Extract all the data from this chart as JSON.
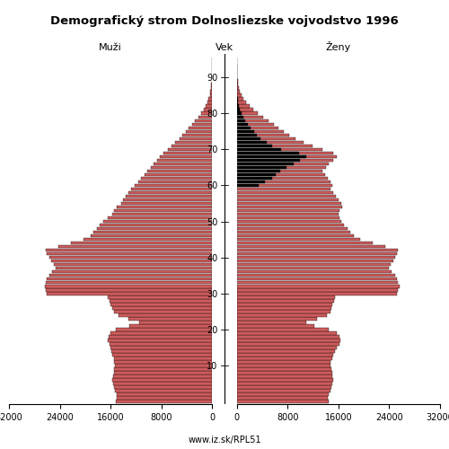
{
  "title": "Demografický strom Dolnosliezske vojvodstvo 1996",
  "left_label": "Muži",
  "center_label": "Vek",
  "right_label": "Ženy",
  "watermark": "www.iz.sk/RPL51",
  "xlim": 32000,
  "bar_color": "#cd5c5c",
  "bar_edge_color": "#000000",
  "black_color": "#000000",
  "background_color": "#ffffff",
  "ages": [
    0,
    1,
    2,
    3,
    4,
    5,
    6,
    7,
    8,
    9,
    10,
    11,
    12,
    13,
    14,
    15,
    16,
    17,
    18,
    19,
    20,
    21,
    22,
    23,
    24,
    25,
    26,
    27,
    28,
    29,
    30,
    31,
    32,
    33,
    34,
    35,
    36,
    37,
    38,
    39,
    40,
    41,
    42,
    43,
    44,
    45,
    46,
    47,
    48,
    49,
    50,
    51,
    52,
    53,
    54,
    55,
    56,
    57,
    58,
    59,
    60,
    61,
    62,
    63,
    64,
    65,
    66,
    67,
    68,
    69,
    70,
    71,
    72,
    73,
    74,
    75,
    76,
    77,
    78,
    79,
    80,
    81,
    82,
    83,
    84,
    85,
    86,
    87,
    88,
    89,
    90,
    91,
    92,
    93,
    94,
    95
  ],
  "males": [
    15200,
    15000,
    15100,
    15300,
    15500,
    15600,
    15700,
    15600,
    15500,
    15400,
    15300,
    15400,
    15500,
    15700,
    15900,
    16000,
    16200,
    16400,
    16300,
    16100,
    15200,
    13000,
    11500,
    13200,
    14800,
    15500,
    15800,
    16000,
    16200,
    16400,
    26000,
    26200,
    26400,
    26200,
    26000,
    25700,
    25200,
    24700,
    25000,
    25400,
    25700,
    26000,
    26200,
    24200,
    22200,
    20200,
    19200,
    18700,
    18200,
    17700,
    17200,
    16400,
    15800,
    15400,
    15000,
    14400,
    14000,
    13600,
    13200,
    12800,
    12200,
    11700,
    11200,
    10700,
    10200,
    9700,
    9200,
    8700,
    8200,
    7700,
    7000,
    6400,
    5800,
    5200,
    4700,
    4200,
    3700,
    3200,
    2700,
    2200,
    1800,
    1400,
    1050,
    780,
    560,
    410,
    290,
    200,
    135,
    88,
    57,
    37,
    23,
    15,
    10,
    6
  ],
  "females": [
    14500,
    14300,
    14500,
    14700,
    14900,
    15000,
    15200,
    15100,
    15000,
    14900,
    14700,
    14800,
    15000,
    15200,
    15400,
    15800,
    16100,
    16300,
    16100,
    15800,
    14500,
    12200,
    11000,
    12700,
    14200,
    14700,
    14900,
    15100,
    15300,
    15500,
    25200,
    25400,
    25600,
    25400,
    25200,
    24900,
    24400,
    23900,
    24200,
    24600,
    24900,
    25200,
    25400,
    23400,
    21400,
    19400,
    18400,
    17900,
    17400,
    16900,
    16400,
    16200,
    16000,
    16200,
    16600,
    16400,
    16000,
    15600,
    15200,
    14800,
    15000,
    14800,
    14400,
    13900,
    13500,
    14000,
    14500,
    15200,
    15800,
    15200,
    13500,
    12000,
    10500,
    9200,
    8200,
    7400,
    6600,
    5800,
    5000,
    4200,
    3300,
    2600,
    2000,
    1450,
    1050,
    750,
    510,
    340,
    215,
    138,
    86,
    53,
    33,
    21,
    13,
    8
  ],
  "females_black": [
    0,
    0,
    0,
    0,
    0,
    0,
    0,
    0,
    0,
    0,
    0,
    0,
    0,
    0,
    0,
    0,
    0,
    0,
    0,
    0,
    0,
    0,
    0,
    0,
    0,
    0,
    0,
    0,
    0,
    0,
    0,
    0,
    0,
    0,
    0,
    0,
    0,
    0,
    0,
    0,
    0,
    0,
    0,
    0,
    0,
    0,
    0,
    0,
    0,
    0,
    0,
    0,
    0,
    0,
    0,
    0,
    0,
    0,
    0,
    0,
    3500,
    4500,
    5500,
    6200,
    6800,
    7800,
    9000,
    10000,
    11000,
    9800,
    7000,
    5500,
    4700,
    3800,
    3200,
    2700,
    2200,
    1800,
    1400,
    1050,
    750,
    520,
    360,
    240,
    155,
    95,
    60,
    35,
    20,
    12,
    7,
    4,
    2,
    1,
    0,
    0
  ],
  "males_black": [
    0,
    0,
    0,
    0,
    0,
    0,
    0,
    0,
    0,
    0,
    0,
    0,
    0,
    0,
    0,
    0,
    0,
    0,
    0,
    0,
    0,
    0,
    0,
    0,
    0,
    0,
    0,
    0,
    0,
    0,
    0,
    0,
    0,
    0,
    0,
    0,
    0,
    0,
    0,
    0,
    0,
    0,
    0,
    0,
    0,
    0,
    0,
    0,
    0,
    0,
    0,
    0,
    0,
    0,
    0,
    0,
    0,
    0,
    0,
    0,
    0,
    0,
    0,
    0,
    0,
    0,
    0,
    0,
    0,
    0,
    0,
    0,
    0,
    0,
    0,
    0,
    0,
    0,
    0,
    0,
    0,
    0,
    0,
    0,
    0,
    0,
    0,
    0,
    0,
    0,
    0,
    0,
    0,
    0,
    0,
    0
  ]
}
